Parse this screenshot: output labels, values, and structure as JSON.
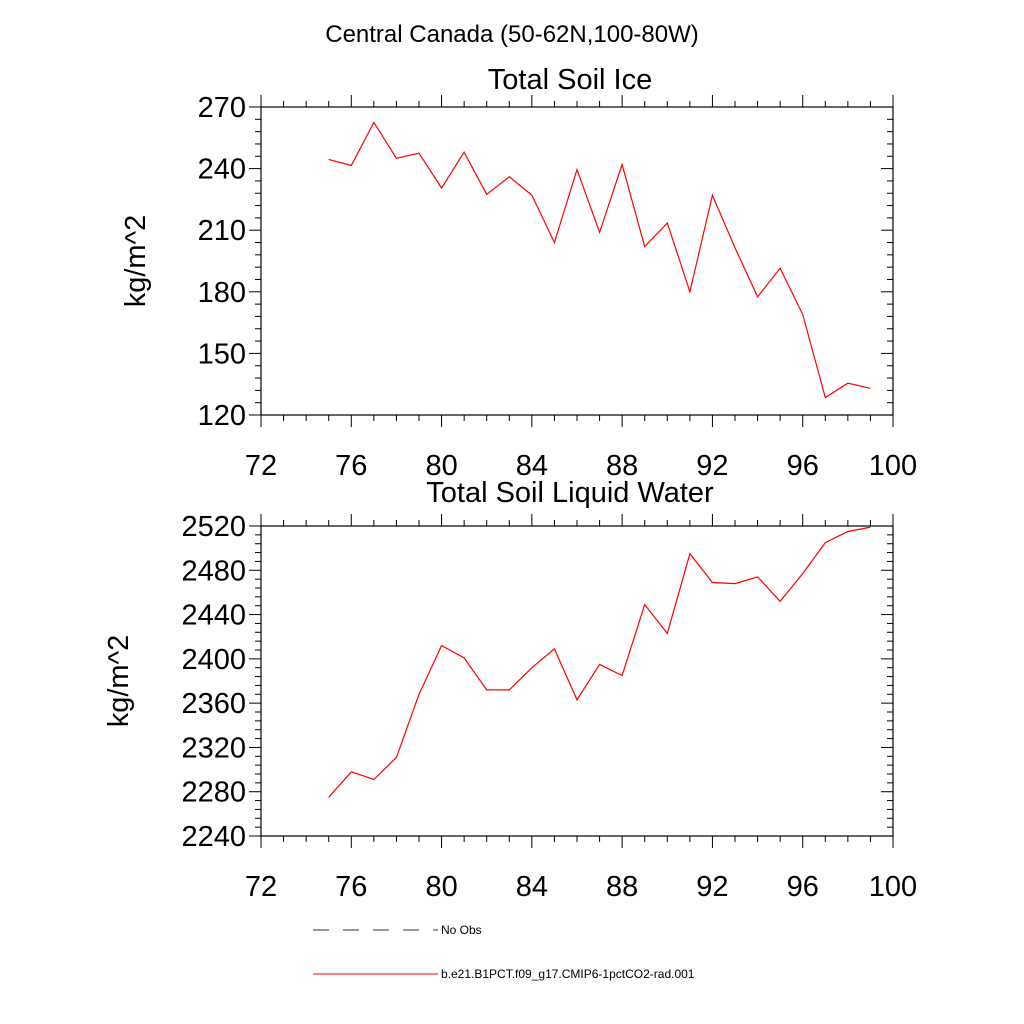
{
  "figure": {
    "title": "Central Canada (50-62N,100-80W)"
  },
  "chart_data": [
    {
      "type": "line",
      "title": "Total Soil Ice",
      "ylabel": "kg/m^2",
      "xlabel": "",
      "xlim": [
        72,
        100
      ],
      "ylim": [
        120,
        270
      ],
      "xticks": [
        72,
        76,
        80,
        84,
        88,
        92,
        96,
        100
      ],
      "yticks": [
        120,
        150,
        180,
        210,
        240,
        270
      ],
      "x": [
        75,
        76,
        77,
        78,
        79,
        80,
        81,
        82,
        83,
        84,
        85,
        86,
        87,
        88,
        89,
        90,
        91,
        92,
        93,
        94,
        95,
        96,
        97,
        98,
        99
      ],
      "series": [
        {
          "name": "b.e21.B1PCT.f09_g17.CMIP6-1pctCO2-rad.001",
          "color": "#ff0000",
          "values": [
            244.5,
            241.5,
            262.5,
            245,
            247.5,
            230.5,
            248,
            227.5,
            236,
            227,
            204,
            239.5,
            209,
            242,
            202,
            213.5,
            180,
            227,
            201.5,
            177.5,
            191.5,
            169,
            128.5,
            135.5,
            133
          ]
        }
      ],
      "grid": false
    },
    {
      "type": "line",
      "title": "Total Soil Liquid Water",
      "ylabel": "kg/m^2",
      "xlabel": "",
      "xlim": [
        72,
        100
      ],
      "ylim": [
        2240,
        2520
      ],
      "xticks": [
        72,
        76,
        80,
        84,
        88,
        92,
        96,
        100
      ],
      "yticks": [
        2240,
        2280,
        2320,
        2360,
        2400,
        2440,
        2480,
        2520
      ],
      "x": [
        75,
        76,
        77,
        78,
        79,
        80,
        81,
        82,
        83,
        84,
        85,
        86,
        87,
        88,
        89,
        90,
        91,
        92,
        93,
        94,
        95,
        96,
        97,
        98,
        99
      ],
      "series": [
        {
          "name": "b.e21.B1PCT.f09_g17.CMIP6-1pctCO2-rad.001",
          "color": "#ff0000",
          "values": [
            2275,
            2298,
            2291,
            2311,
            2368,
            2412,
            2401,
            2372,
            2372,
            2392,
            2409,
            2363,
            2395,
            2385,
            2449,
            2423,
            2495,
            2469,
            2468,
            2474,
            2452,
            2477,
            2505,
            2515,
            2519
          ]
        }
      ],
      "grid": false
    }
  ],
  "legend": {
    "placement": "bottom",
    "entries": [
      {
        "label": "No Obs",
        "color": "#333333",
        "style": "dashed"
      },
      {
        "label": "b.e21.B1PCT.f09_g17.CMIP6-1pctCO2-rad.001",
        "color": "#ff0000",
        "style": "solid"
      }
    ]
  }
}
